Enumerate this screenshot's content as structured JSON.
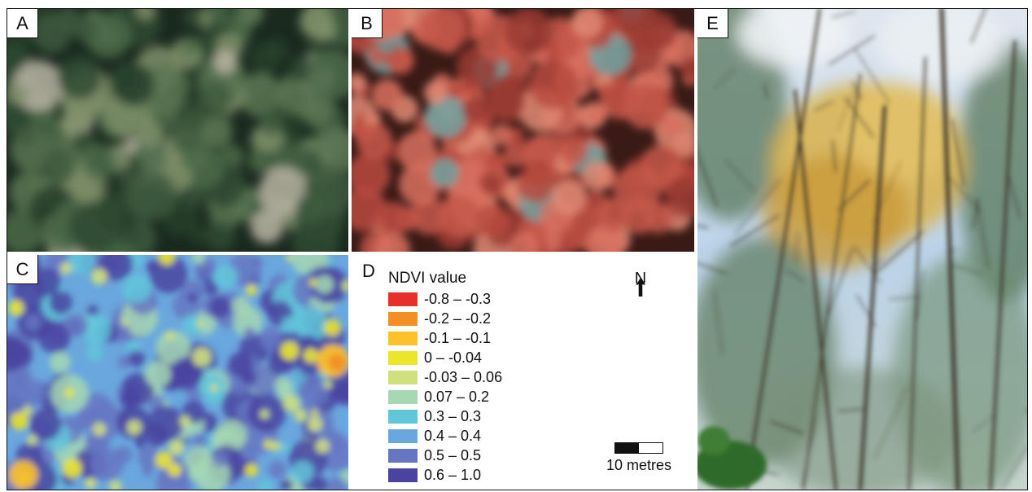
{
  "panels": {
    "a": {
      "label": "A"
    },
    "b": {
      "label": "B"
    },
    "c": {
      "label": "C"
    },
    "d": {
      "label": "D"
    },
    "e": {
      "label": "E"
    }
  },
  "legend": {
    "title": "NDVI value",
    "items": [
      {
        "label": "-0.8 – -0.3",
        "color": "#e8302a"
      },
      {
        "label": "-0.2 – -0.2",
        "color": "#f39025"
      },
      {
        "label": "-0.1 – -0.1",
        "color": "#fbc32a"
      },
      {
        "label": "0 – -0.04",
        "color": "#ebe62b"
      },
      {
        "label": "-0.03 – 0.06",
        "color": "#cfe07c"
      },
      {
        "label": "0.07 – 0.2",
        "color": "#a6d8b3"
      },
      {
        "label": "0.3 – 0.3",
        "color": "#62c6da"
      },
      {
        "label": "0.4 – 0.4",
        "color": "#6aa7de"
      },
      {
        "label": "0.5 – 0.5",
        "color": "#6677c2"
      },
      {
        "label": "0.6 – 1.0",
        "color": "#4a44a0"
      }
    ]
  },
  "north": {
    "label": "N"
  },
  "scale": {
    "label": "10 metres"
  }
}
